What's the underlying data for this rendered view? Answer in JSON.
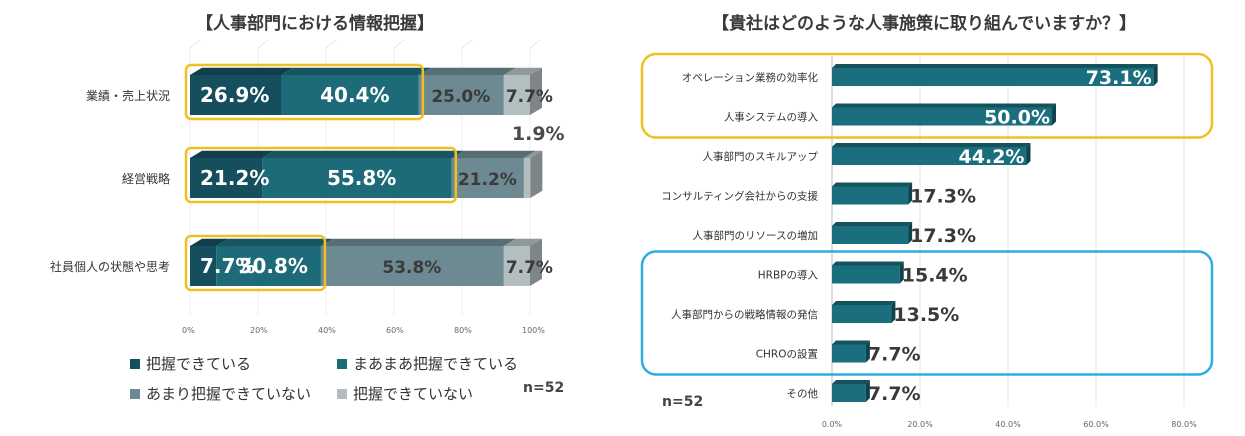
{
  "left": {
    "title": "【人事部門における情報把握】",
    "n_label": "n=52",
    "legend": [
      {
        "label": "把握できている",
        "color": "#154e5c"
      },
      {
        "label": "まあまあ把握できている",
        "color": "#1d6a78"
      },
      {
        "label": "あまり把握できていない",
        "color": "#6d8a92"
      },
      {
        "label": "把握できていない",
        "color": "#b3bec1"
      }
    ]
  },
  "right": {
    "title": "【貴社はどのような人事施策に取り組んでいますか？】",
    "n_label": "n=52"
  },
  "chart_data": [
    {
      "type": "bar",
      "orientation": "horizontal-stacked",
      "title": "【人事部門における情報把握】",
      "categories": [
        "業績・売上状況",
        "経営戦略",
        "社員個人の状態や思考"
      ],
      "series": [
        {
          "name": "把握できている",
          "values": [
            26.9,
            21.2,
            7.7
          ],
          "labels": [
            "26.9%",
            "21.2%",
            "7.7%"
          ],
          "color": "#154e5c"
        },
        {
          "name": "まあまあ把握できている",
          "values": [
            40.4,
            55.8,
            30.8
          ],
          "labels": [
            "40.4%",
            "55.8%",
            "30.8%"
          ],
          "color": "#1d6a78"
        },
        {
          "name": "あまり把握できていない",
          "values": [
            25.0,
            21.2,
            53.8
          ],
          "labels": [
            "25.0%",
            "21.2%",
            "53.8%"
          ],
          "color": "#6d8a92"
        },
        {
          "name": "把握できていない",
          "values": [
            7.7,
            1.9,
            7.7
          ],
          "labels": [
            "7.7%",
            "1.9%",
            "7.7%"
          ],
          "color": "#b3bec1"
        }
      ],
      "xlim": [
        0,
        100
      ],
      "xticks": [
        "0%",
        "20%",
        "40%",
        "60%",
        "80%",
        "100%"
      ],
      "highlight": {
        "color": "#f0c020",
        "description": "first two segments of each bar"
      },
      "legend_position": "bottom",
      "grid": false
    },
    {
      "type": "bar",
      "orientation": "horizontal",
      "title": "【貴社はどのような人事施策に取り組んでいますか？】",
      "categories": [
        "オペレーション業務の効率化",
        "人事システムの導入",
        "人事部門のスキルアップ",
        "コンサルティング会社からの支援",
        "人事部門のリソースの増加",
        "HRBPの導入",
        "人事部門からの戦略情報の発信",
        "CHROの設置",
        "その他"
      ],
      "values": [
        73.1,
        50.0,
        44.2,
        17.3,
        17.3,
        15.4,
        13.5,
        7.7,
        7.7
      ],
      "labels": [
        "73.1%",
        "50.0%",
        "44.2%",
        "17.3%",
        "17.3%",
        "15.4%",
        "13.5%",
        "7.7%",
        "7.7%"
      ],
      "xlim": [
        0,
        80
      ],
      "xticks": [
        "0.0%",
        "20.0%",
        "40.0%",
        "60.0%",
        "80.0%"
      ],
      "bar_color": "#1a6e7d",
      "highlight_groups": [
        {
          "categories": [
            "オペレーション業務の効率化",
            "人事システムの導入"
          ],
          "color": "#f0c020"
        },
        {
          "categories": [
            "HRBPの導入",
            "人事部門からの戦略情報の発信",
            "CHROの設置"
          ],
          "color": "#2aaee0"
        }
      ],
      "grid": true
    }
  ]
}
